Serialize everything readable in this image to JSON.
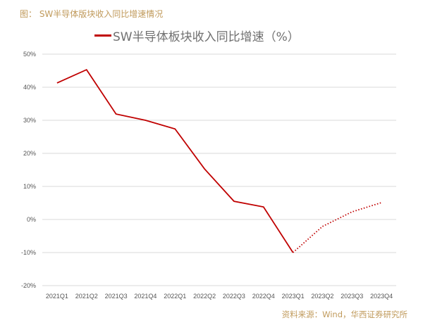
{
  "figure_title": "图：  SW半导体版块收入同比增速情况",
  "source": "资料来源：Wind，华西证券研究所",
  "chart_data": {
    "type": "line",
    "title": "SW半导体版块收入同比增速情况",
    "categories": [
      "2021Q1",
      "2021Q2",
      "2021Q3",
      "2021Q4",
      "2022Q1",
      "2022Q2",
      "2022Q3",
      "2022Q4",
      "2023Q1",
      "2023Q2",
      "2023Q3",
      "2023Q4"
    ],
    "series": [
      {
        "name": "SW半导体板块收入同比增速（%）",
        "color": "#c00000",
        "values": [
          41.3,
          45.3,
          31.9,
          30.0,
          27.4,
          15.3,
          5.5,
          3.8,
          -10.0,
          -2.1,
          2.3,
          5.1
        ],
        "solid_through": "2023Q1",
        "forecast_style": "dotted"
      }
    ],
    "ylim": [
      -20,
      50
    ],
    "yticks": [
      -20,
      -10,
      0,
      10,
      20,
      30,
      40,
      50
    ],
    "ytick_labels": [
      "-20%",
      "-10%",
      "0%",
      "10%",
      "20%",
      "30%",
      "40%",
      "50%"
    ],
    "grid": true,
    "legend": "top-center",
    "xlabel": "",
    "ylabel": ""
  }
}
